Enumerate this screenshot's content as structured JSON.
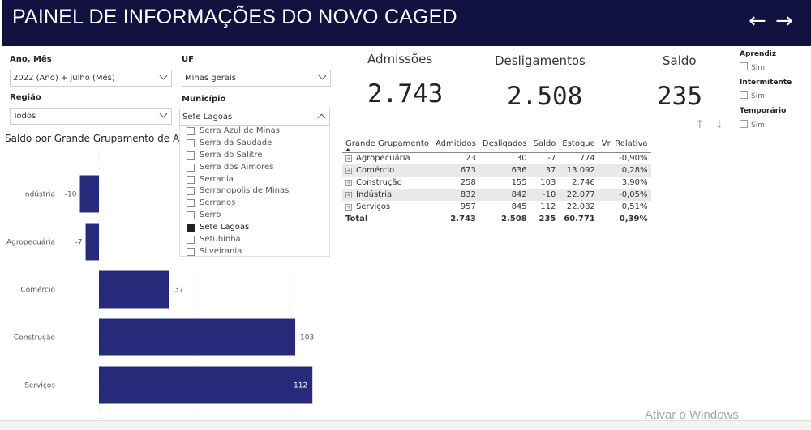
{
  "header": {
    "title": "PAINEL DE INFORMAÇÕES DO NOVO CAGED",
    "back_icon": "←",
    "forward_icon": "→"
  },
  "slicers": {
    "ano_mes": {
      "label": "Ano, Mês",
      "value": "2022 (Ano) + julho (Mês)"
    },
    "uf": {
      "label": "UF",
      "value": "Minas gerais"
    },
    "regiao": {
      "label": "Região",
      "value": "Todos"
    },
    "municipio": {
      "label": "Município",
      "value": "Sete Lagoas",
      "options": [
        {
          "label": "Serra Azul de Minas",
          "checked": false
        },
        {
          "label": "Serra da Saudade",
          "checked": false
        },
        {
          "label": "Serra do Salitre",
          "checked": false
        },
        {
          "label": "Serra dos Aimores",
          "checked": false
        },
        {
          "label": "Serrania",
          "checked": false
        },
        {
          "label": "Serranopolis de Minas",
          "checked": false
        },
        {
          "label": "Serranos",
          "checked": false
        },
        {
          "label": "Serro",
          "checked": false
        },
        {
          "label": "Sete Lagoas",
          "checked": true
        },
        {
          "label": "Setubinha",
          "checked": false
        },
        {
          "label": "Silveirania",
          "checked": false
        }
      ]
    }
  },
  "kpis": {
    "admissoes": {
      "label": "Admissões",
      "value": "2.743"
    },
    "desligamentos": {
      "label": "Desligamentos",
      "value": "2.508"
    },
    "saldo": {
      "label": "Saldo",
      "value": "235"
    }
  },
  "flags": {
    "aprendiz": {
      "label": "Aprendiz",
      "option": "Sim"
    },
    "intermitente": {
      "label": "Intermitente",
      "option": "Sim"
    },
    "temporario": {
      "label": "Temporário",
      "option": "Sim"
    }
  },
  "table": {
    "headers": [
      "Grande Grupamento",
      "Admitidos",
      "Desligados",
      "Saldo",
      "Estoque",
      "Vr. Relativa"
    ],
    "rows": [
      [
        "Agropecuária",
        "23",
        "30",
        "-7",
        "774",
        "-0,90%"
      ],
      [
        "Comércio",
        "673",
        "636",
        "37",
        "13.092",
        "0,28%"
      ],
      [
        "Construção",
        "258",
        "155",
        "103",
        "2.746",
        "3,90%"
      ],
      [
        "Indústria",
        "832",
        "842",
        "-10",
        "22.077",
        "-0,05%"
      ],
      [
        "Serviços",
        "957",
        "845",
        "112",
        "22.082",
        "0,51%"
      ]
    ],
    "total": [
      "Total",
      "2.743",
      "2.508",
      "235",
      "60.771",
      "0,39%"
    ]
  },
  "chart_data": {
    "type": "bar",
    "orientation": "horizontal",
    "title": "Saldo por Grande Grupamento de Ati",
    "categories": [
      "Indústria",
      "Agropecuária",
      "Comércio",
      "Construção",
      "Serviços"
    ],
    "values": [
      -10,
      -7,
      37,
      103,
      112
    ],
    "bar_color": "#272a7a"
  },
  "watermark": "Ativar o Windows"
}
